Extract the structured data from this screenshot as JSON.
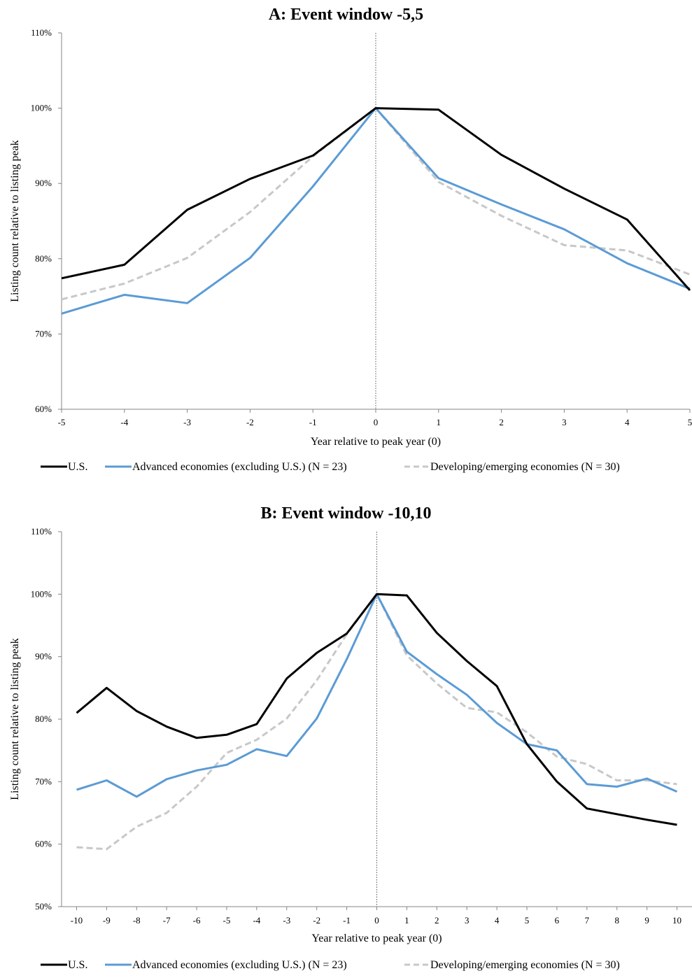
{
  "chart_data": [
    {
      "type": "line",
      "title": "A: Event window -5,5",
      "xlabel": "Year relative to peak year (0)",
      "ylabel": "Listing count relative to listing peak",
      "x": [
        -5,
        -4,
        -3,
        -2,
        -1,
        0,
        1,
        2,
        3,
        4,
        5
      ],
      "xlim": [
        -5,
        5
      ],
      "ylim": [
        60,
        110
      ],
      "yticks": [
        "60%",
        "70%",
        "80%",
        "90%",
        "100%",
        "110%"
      ],
      "ytick_values": [
        60,
        70,
        80,
        90,
        100,
        110
      ],
      "grid": false,
      "legend_position": "bottom",
      "reference_line": {
        "x": 0,
        "style": "dotted"
      },
      "series": [
        {
          "name": "U.S.",
          "color": "#000000",
          "style": "solid",
          "values": [
            77.4,
            79.2,
            86.5,
            90.6,
            93.7,
            100.0,
            99.8,
            93.8,
            89.3,
            85.2,
            75.8
          ]
        },
        {
          "name": "Advanced economies (excluding U.S.) (N = 23)",
          "color": "#5b9bd5",
          "style": "solid",
          "values": [
            72.7,
            75.2,
            74.1,
            80.1,
            89.6,
            100.0,
            90.7,
            87.2,
            83.9,
            79.4,
            76.0
          ]
        },
        {
          "name": "Developing/emerging economies (N = 30)",
          "color": "#c8c8c8",
          "style": "dashed",
          "values": [
            74.6,
            76.7,
            80.1,
            86.2,
            93.6,
            100.0,
            90.2,
            85.7,
            81.8,
            81.1,
            77.9
          ]
        }
      ]
    },
    {
      "type": "line",
      "title": "B: Event window -10,10",
      "xlabel": "Year relative to peak year (0)",
      "ylabel": "Listing count relative to listing peak",
      "x": [
        -10,
        -9,
        -8,
        -7,
        -6,
        -5,
        -4,
        -3,
        -2,
        -1,
        0,
        1,
        2,
        3,
        4,
        5,
        6,
        7,
        8,
        9,
        10
      ],
      "xlim": [
        -10.5,
        10.5
      ],
      "ylim": [
        50,
        110
      ],
      "yticks": [
        "50%",
        "60%",
        "70%",
        "80%",
        "90%",
        "100%",
        "110%"
      ],
      "ytick_values": [
        50,
        60,
        70,
        80,
        90,
        100,
        110
      ],
      "grid": false,
      "legend_position": "bottom",
      "reference_line": {
        "x": 0,
        "style": "dotted"
      },
      "series": [
        {
          "name": "U.S.",
          "color": "#000000",
          "style": "solid",
          "values": [
            81.0,
            85.0,
            81.3,
            78.8,
            77.0,
            77.5,
            79.2,
            86.5,
            90.6,
            93.7,
            100.0,
            99.8,
            93.8,
            89.3,
            85.3,
            76.0,
            70.0,
            65.7,
            64.8,
            63.9,
            63.1
          ]
        },
        {
          "name": "Advanced economies (excluding U.S.) (N = 23)",
          "color": "#5b9bd5",
          "style": "solid",
          "values": [
            68.7,
            70.2,
            67.6,
            70.4,
            71.8,
            72.7,
            75.2,
            74.1,
            80.1,
            89.6,
            100.0,
            90.8,
            87.2,
            83.9,
            79.4,
            76.0,
            75.0,
            69.6,
            69.2,
            70.5,
            68.4
          ]
        },
        {
          "name": "Developing/emerging economies (N = 30)",
          "color": "#c8c8c8",
          "style": "dashed",
          "values": [
            59.5,
            59.2,
            62.8,
            65.0,
            69.2,
            74.6,
            76.7,
            80.1,
            86.2,
            93.6,
            100.0,
            90.2,
            85.7,
            81.8,
            81.1,
            77.9,
            74.0,
            72.8,
            70.2,
            70.2,
            69.6
          ]
        }
      ]
    }
  ]
}
